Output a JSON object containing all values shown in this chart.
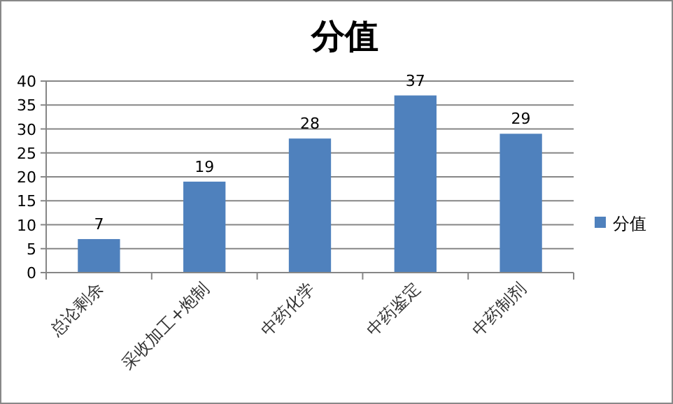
{
  "chart_data": {
    "type": "bar",
    "title": "分值",
    "categories": [
      "总论剩余",
      "采收加工+炮制",
      "中药化学",
      "中药鉴定",
      "中药制剂"
    ],
    "series": [
      {
        "name": "分值",
        "color": "#4f81bd",
        "values": [
          7,
          19,
          28,
          37,
          29
        ]
      }
    ],
    "ylim": [
      0,
      40
    ],
    "yticks": [
      0,
      5,
      10,
      15,
      20,
      25,
      30,
      35,
      40
    ],
    "grid": "y",
    "legend": "right",
    "data_labels": true
  }
}
